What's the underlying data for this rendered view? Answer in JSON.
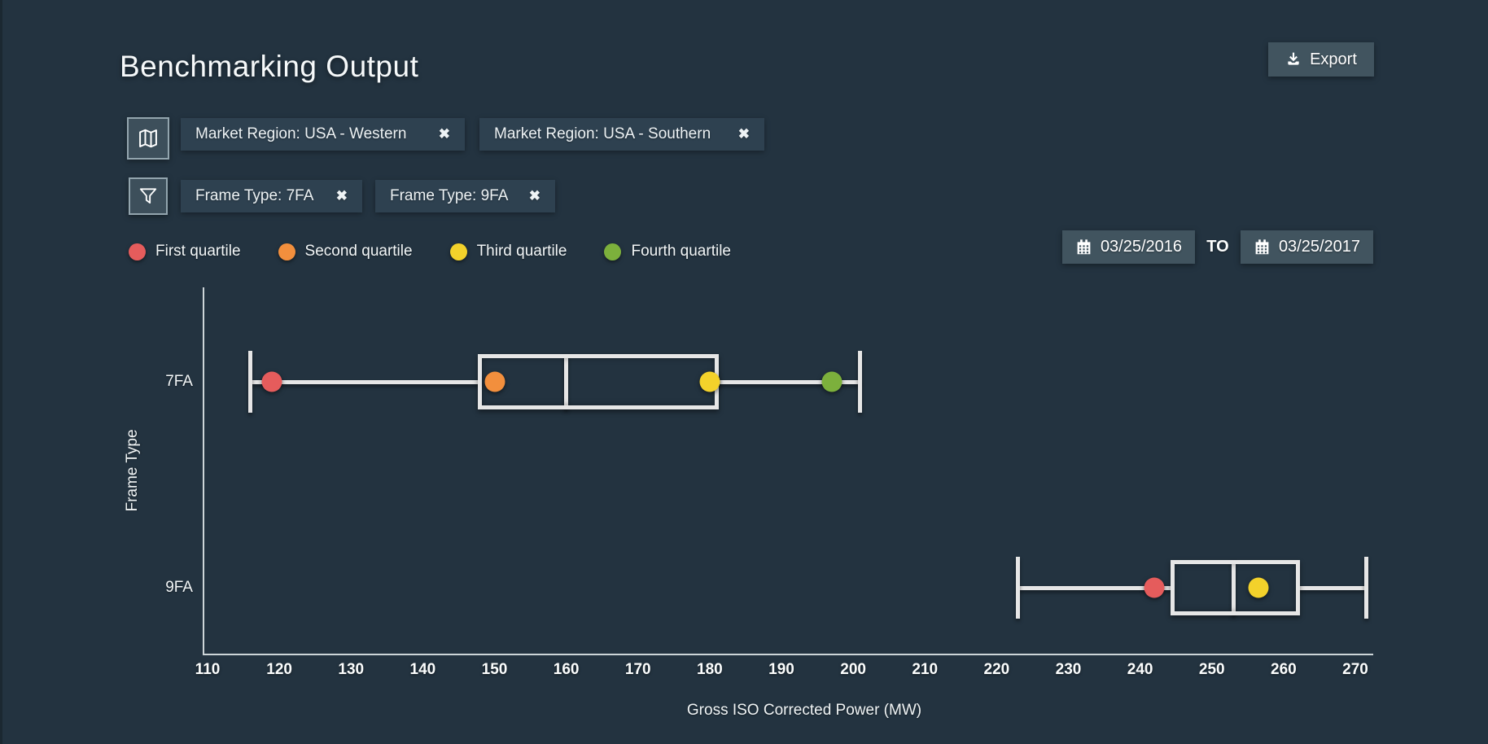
{
  "page": {
    "title": "Benchmarking Output"
  },
  "toolbar": {
    "export_label": "Export",
    "export_icon": "download-icon"
  },
  "filters": {
    "region_row": {
      "icon": "map-icon",
      "chips": [
        {
          "label": "Market Region: USA - Western",
          "close_icon": "close-icon",
          "close_glyph": "✖"
        },
        {
          "label": "Market Region: USA - Southern",
          "close_icon": "close-icon",
          "close_glyph": "✖"
        }
      ]
    },
    "frame_row": {
      "icon": "filter-icon",
      "chips": [
        {
          "label": "Frame Type: 7FA",
          "close_icon": "close-icon",
          "close_glyph": "✖"
        },
        {
          "label": "Frame Type: 9FA",
          "close_icon": "close-icon",
          "close_glyph": "✖"
        }
      ]
    }
  },
  "legend": {
    "items": [
      {
        "label": "First quartile",
        "color": "#e55c5c"
      },
      {
        "label": "Second quartile",
        "color": "#f28f3d"
      },
      {
        "label": "Third quartile",
        "color": "#f3d22b"
      },
      {
        "label": "Fourth quartile",
        "color": "#7cb03c"
      }
    ]
  },
  "date_range": {
    "start": "03/25/2016",
    "separator": "TO",
    "end": "03/25/2017",
    "icon": "calendar-icon"
  },
  "chart_data": {
    "type": "boxplot",
    "orientation": "horizontal",
    "title": "",
    "xlabel": "Gross ISO Corrected Power (MW)",
    "ylabel": "Frame Type",
    "xlim": [
      110,
      272.5
    ],
    "x_ticks": [
      110,
      120,
      130,
      140,
      150,
      160,
      170,
      180,
      190,
      200,
      210,
      220,
      230,
      240,
      250,
      260,
      270
    ],
    "grid": false,
    "categories": [
      "7FA",
      "9FA"
    ],
    "series": [
      {
        "category": "7FA",
        "whisker_low": 116,
        "box_low": 148,
        "median": 160,
        "box_high": 181,
        "whisker_high": 201,
        "points": [
          {
            "quartile": "First quartile",
            "value": 119,
            "color": "#e55c5c"
          },
          {
            "quartile": "Second quartile",
            "value": 150,
            "color": "#f28f3d"
          },
          {
            "quartile": "Third quartile",
            "value": 180,
            "color": "#f3d22b"
          },
          {
            "quartile": "Fourth quartile",
            "value": 197,
            "color": "#7cb03c"
          }
        ]
      },
      {
        "category": "9FA",
        "whisker_low": 223,
        "box_low": 244.5,
        "median": 253,
        "box_high": 262,
        "whisker_high": 271.5,
        "points": [
          {
            "quartile": "First quartile",
            "value": 242,
            "color": "#e55c5c"
          },
          {
            "quartile": "Third quartile",
            "value": 256.5,
            "color": "#f3d22b"
          }
        ]
      }
    ]
  }
}
